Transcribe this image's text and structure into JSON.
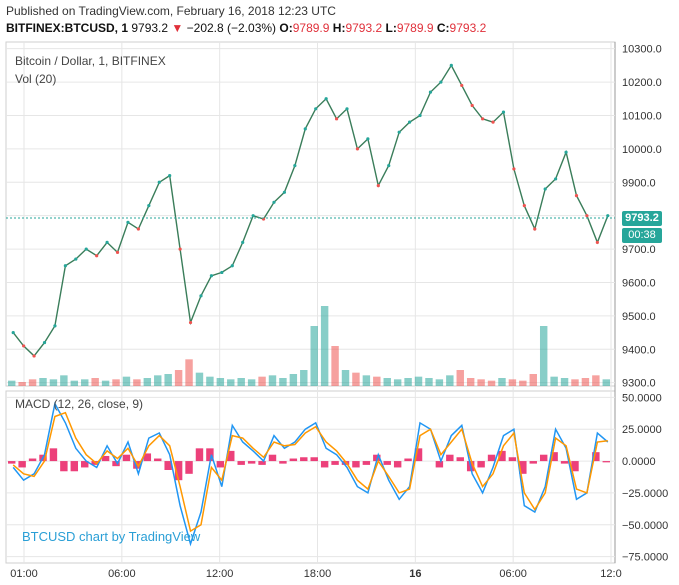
{
  "header": {
    "published": "Published on TradingView.com, February 16, 2018 12:23 UTC",
    "symbol": "BITFINEX:BTCUSD, 1",
    "last": "9793.2",
    "change": "−202.8 (−2.03%)",
    "o_label": "O:",
    "o_value": "9789.9",
    "h_label": "H:",
    "h_value": "9793.2",
    "l_label": "L:",
    "l_value": "9789.9",
    "c_label": "C:",
    "c_value": "9793.2"
  },
  "price_pane": {
    "title": "Bitcoin / Dollar, 1, BITFINEX",
    "volume_label": "Vol (20)",
    "last_price_tag": "9793.2",
    "countdown": "00:38"
  },
  "macd_pane": {
    "title": "MACD (12, 26, close, 9)"
  },
  "watermark": "BTCUSD chart by TradingView",
  "colors": {
    "up": "#26a69a",
    "down": "#ef5350",
    "macd": "#2196f3",
    "signal": "#ff9800",
    "histogram": "#e91e63",
    "grid": "#e6e6e6"
  },
  "chart_data": [
    {
      "type": "line",
      "title": "Bitcoin / Dollar, 1, BITFINEX",
      "x_ticks": [
        "01:00",
        "06:00",
        "12:00",
        "18:00",
        "16",
        "06:00",
        "12:0"
      ],
      "y_ticks": [
        "9300.0",
        "9400.0",
        "9500.0",
        "9600.0",
        "9700.0",
        "9800.0",
        "9900.0",
        "10000.0",
        "10100.0",
        "10200.0",
        "10300.0"
      ],
      "ylim": [
        9290,
        10320
      ],
      "grid": true,
      "series": [
        {
          "values": [
            9450,
            9410,
            9380,
            9420,
            9470,
            9650,
            9670,
            9700,
            9680,
            9720,
            9690,
            9780,
            9760,
            9830,
            9900,
            9920,
            9700,
            9480,
            9560,
            9620,
            9630,
            9650,
            9720,
            9800,
            9790,
            9840,
            9870,
            9950,
            10060,
            10120,
            10150,
            10090,
            10120,
            10000,
            10030,
            9890,
            9950,
            10050,
            10080,
            10100,
            10170,
            10200,
            10250,
            10190,
            10130,
            10090,
            10080,
            10110,
            9940,
            9830,
            9760,
            9880,
            9910,
            9990,
            9860,
            9800,
            9720,
            9800
          ]
        }
      ]
    },
    {
      "type": "bar",
      "title": "Vol (20)",
      "series": [
        {
          "values": [
            4,
            3,
            5,
            6,
            5,
            8,
            4,
            5,
            6,
            4,
            5,
            7,
            5,
            6,
            8,
            9,
            12,
            20,
            10,
            7,
            6,
            5,
            6,
            5,
            7,
            8,
            6,
            9,
            12,
            45,
            60,
            30,
            12,
            10,
            8,
            7,
            6,
            5,
            6,
            7,
            6,
            5,
            8,
            12,
            6,
            5,
            4,
            6,
            5,
            4,
            9,
            45,
            7,
            6,
            5,
            6,
            8,
            5
          ]
        }
      ]
    },
    {
      "type": "line",
      "title": "MACD (12, 26, close, 9)",
      "y_ticks": [
        "50.0000",
        "25.0000",
        "0.0000",
        "−25.0000",
        "−50.0000",
        "−75.0000"
      ],
      "ylim": [
        -80,
        55
      ],
      "series": [
        {
          "values": [
            -5,
            -15,
            -10,
            5,
            45,
            30,
            10,
            0,
            -5,
            12,
            -2,
            15,
            -10,
            18,
            22,
            5,
            -35,
            -65,
            -40,
            5,
            -20,
            28,
            15,
            8,
            0,
            20,
            10,
            15,
            25,
            30,
            10,
            5,
            -5,
            -20,
            -25,
            5,
            -15,
            -30,
            -20,
            30,
            25,
            0,
            20,
            28,
            -10,
            -25,
            -5,
            20,
            25,
            -35,
            -40,
            -20,
            25,
            10,
            -30,
            -25,
            22,
            15
          ]
        },
        {
          "values": [
            -3,
            -10,
            -12,
            0,
            35,
            38,
            18,
            5,
            -2,
            8,
            2,
            10,
            -4,
            12,
            20,
            12,
            -20,
            -55,
            -50,
            -5,
            -15,
            20,
            18,
            10,
            3,
            15,
            12,
            13,
            22,
            27,
            15,
            8,
            -2,
            -15,
            -22,
            0,
            -12,
            -25,
            -22,
            20,
            25,
            5,
            15,
            25,
            -2,
            -20,
            -10,
            12,
            22,
            -25,
            -38,
            -25,
            18,
            12,
            -22,
            -25,
            15,
            16
          ]
        },
        {
          "values": [
            -2,
            -5,
            2,
            5,
            10,
            -8,
            -8,
            -5,
            -3,
            4,
            -4,
            5,
            -6,
            6,
            2,
            -7,
            -15,
            -10,
            10,
            10,
            -5,
            8,
            -3,
            -2,
            -3,
            5,
            -2,
            2,
            3,
            3,
            -5,
            -3,
            -3,
            -5,
            -3,
            5,
            -3,
            -5,
            2,
            10,
            0,
            -5,
            5,
            3,
            -8,
            -5,
            5,
            8,
            3,
            -10,
            -2,
            5,
            7,
            -2,
            -8,
            0,
            7,
            -1
          ]
        }
      ]
    }
  ]
}
